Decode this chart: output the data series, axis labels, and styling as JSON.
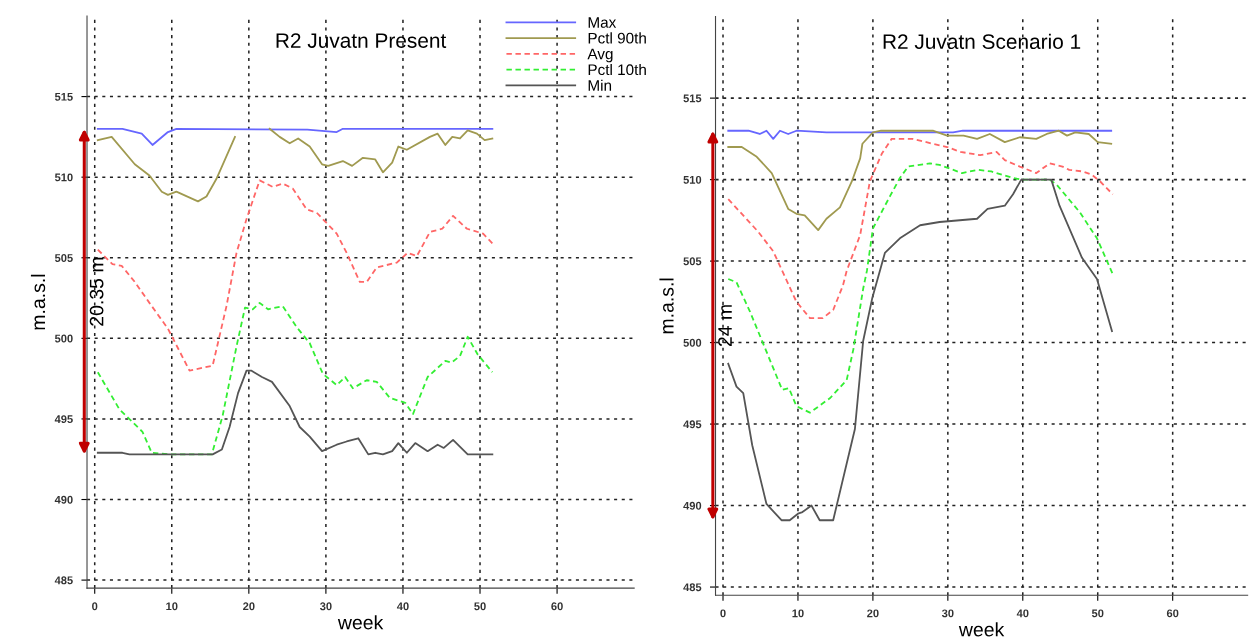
{
  "chart_data": [
    {
      "type": "line",
      "title": "R2 Juvatn Present",
      "xlabel": "week",
      "ylabel": "m.a.s.l",
      "xlim": [
        -1,
        70
      ],
      "ylim": [
        484.5,
        520
      ],
      "xticks": [
        0,
        10,
        20,
        30,
        40,
        50,
        60
      ],
      "yticks": [
        485,
        490,
        495,
        500,
        505,
        510,
        515
      ],
      "grid": true,
      "legend": "top right",
      "marker": "none",
      "annotations": [
        "20.35 m"
      ],
      "series": [
        {
          "name": "Max",
          "color": "#6666ff",
          "line_style": "solid",
          "x": [
            0.4,
            3.6,
            6.1,
            7.5,
            9.5,
            10.6,
            27.6,
            31.4,
            32.2,
            51.6
          ],
          "values": [
            513,
            513,
            512.7,
            512.0,
            512.8,
            513,
            512.95,
            512.8,
            513,
            513
          ]
        },
        {
          "name": "Pctl 90th",
          "color": "#a09a50",
          "line_style": "solid",
          "x": [
            0.4,
            2.2,
            5.2,
            7.1,
            8.7,
            9.5,
            10.6,
            13.4,
            14.5,
            15.8,
            18.2,
            18.5,
            22.7,
            24.0,
            25.3,
            26.4,
            27.9,
            29.5,
            30.3,
            32.2,
            33.4,
            34.8,
            36.4,
            37.4,
            38.6,
            39.4,
            40.5,
            43.5,
            44.5,
            45.5,
            46.4,
            47.4,
            48.4,
            49.6,
            50.6,
            51.6
          ],
          "values": [
            512.3,
            512.5,
            510.8,
            510.1,
            509.1,
            508.9,
            509.1,
            508.5,
            508.8,
            509.9,
            512.5,
            null,
            513,
            512.5,
            512.1,
            512.4,
            511.9,
            510.8,
            510.7,
            511.0,
            510.7,
            511.2,
            511.1,
            510.3,
            510.9,
            511.9,
            511.7,
            512.5,
            512.7,
            512.0,
            512.5,
            512.4,
            512.9,
            512.7,
            512.3,
            512.4
          ]
        },
        {
          "name": "Avg",
          "color": "#ff6666",
          "line_style": "dashed",
          "x": [
            0.4,
            2.3,
            3.5,
            5.2,
            7.1,
            9.5,
            12.3,
            15.3,
            17.1,
            18.4,
            19.7,
            21.4,
            23.1,
            24.4,
            25.7,
            27.5,
            28.8,
            31.4,
            32.7,
            34.4,
            35.3,
            36.6,
            39.2,
            40.6,
            41.8,
            43.5,
            45.1,
            46.5,
            48.3,
            50.4,
            51.6
          ],
          "values": [
            505.5,
            504.6,
            504.5,
            503.5,
            502.2,
            500.6,
            498.0,
            498.3,
            502.0,
            505.3,
            507.4,
            509.8,
            509.4,
            509.6,
            509.3,
            508.0,
            507.8,
            506.5,
            505.3,
            503.5,
            503.5,
            504.4,
            504.7,
            505.3,
            505.1,
            506.6,
            506.8,
            507.6,
            506.8,
            506.5,
            505.9
          ]
        },
        {
          "name": "Pctl 10th",
          "color": "#33ee33",
          "line_style": "dashed",
          "x": [
            0.4,
            3.2,
            6.2,
            7.4,
            10,
            15.2,
            16.6,
            18.4,
            19.5,
            20.5,
            21.4,
            22.5,
            24.4,
            26.2,
            27.9,
            29.6,
            31.4,
            32.5,
            33.5,
            35.3,
            36.6,
            38.3,
            40.3,
            41.3,
            43.2,
            45.5,
            46.3,
            47.4,
            48.4,
            49.7,
            51.6
          ],
          "values": [
            497.9,
            495.6,
            494.2,
            492.9,
            492.8,
            492.8,
            495.2,
            499.5,
            501.9,
            501.8,
            502.2,
            501.8,
            502.0,
            500.7,
            499.7,
            497.8,
            497.1,
            497.6,
            496.9,
            497.4,
            497.3,
            496.3,
            496.0,
            495.3,
            497.6,
            498.6,
            498.5,
            498.9,
            500.1,
            499.0,
            497.9
          ]
        },
        {
          "name": "Min",
          "color": "#555555",
          "line_style": "solid",
          "x": [
            0.4,
            3.6,
            4.5,
            15.3,
            16.5,
            17.5,
            18.6,
            19.7,
            20.3,
            21.7,
            23.0,
            25.3,
            26.6,
            27.9,
            29.5,
            31.4,
            32.7,
            34.2,
            35.5,
            36.4,
            37.4,
            38.6,
            39.4,
            40.5,
            41.6,
            43.2,
            44.5,
            45.3,
            46.5,
            48.4,
            51.6
          ],
          "values": [
            492.9,
            492.9,
            492.8,
            492.8,
            493.1,
            494.5,
            496.6,
            498.0,
            498.0,
            497.6,
            497.3,
            495.8,
            494.5,
            493.9,
            493.0,
            493.4,
            493.6,
            493.8,
            492.8,
            492.9,
            492.8,
            493.0,
            493.5,
            492.9,
            493.5,
            493.0,
            493.4,
            493.2,
            493.7,
            492.8,
            492.8
          ]
        }
      ]
    },
    {
      "type": "line",
      "title": "R2 Juvatn Scenario 1",
      "xlabel": "week",
      "ylabel": "m.a.s.l",
      "xlim": [
        -1,
        70
      ],
      "ylim": [
        484.5,
        520
      ],
      "xticks": [
        0,
        10,
        20,
        30,
        40,
        50,
        60
      ],
      "yticks": [
        485,
        490,
        495,
        500,
        505,
        510,
        515
      ],
      "grid": true,
      "marker": "none",
      "annotations": [
        "24 m"
      ],
      "series": [
        {
          "color": "#6666ff",
          "line_style": "solid",
          "x": [
            0.7,
            3.4,
            4.9,
            5.8,
            6.7,
            7.6,
            8.7,
            9.8,
            13.8,
            30.7,
            32.0,
            51.8
          ],
          "values": [
            513,
            513,
            512.8,
            513,
            512.5,
            513,
            512.8,
            513,
            512.9,
            512.9,
            513,
            513
          ]
        },
        {
          "color": "#a09a50",
          "line_style": "solid",
          "x": [
            0.7,
            2.5,
            4.5,
            6.5,
            8.7,
            9.8,
            10.9,
            12.7,
            13.8,
            15.6,
            17.2,
            18.3,
            18.6,
            20.0,
            21.1,
            28.0,
            29.9,
            32.1,
            33.9,
            35.6,
            37.6,
            39.6,
            41.8,
            43.2,
            44.8,
            45.9,
            47.0,
            48.8,
            50.0,
            51.8
          ],
          "values": [
            512.0,
            512.0,
            511.4,
            510.4,
            508.2,
            507.9,
            507.8,
            506.9,
            507.6,
            508.3,
            509.9,
            511.3,
            512.2,
            512.9,
            513,
            513,
            512.7,
            512.7,
            512.5,
            512.8,
            512.3,
            512.6,
            512.5,
            512.8,
            513,
            512.7,
            512.9,
            512.8,
            512.3,
            512.2
          ]
        },
        {
          "color": "#ff6666",
          "line_style": "dashed",
          "x": [
            0.7,
            4.7,
            6.7,
            9.8,
            11.6,
            13.3,
            14.7,
            16.0,
            16.5,
            18.3,
            19.6,
            21.2,
            22.5,
            25.3,
            28.0,
            29.9,
            31.7,
            34.3,
            36.5,
            37.6,
            39.6,
            41.8,
            43.6,
            45.3,
            46.2,
            48.0,
            49.2,
            50.3,
            52.0
          ],
          "values": [
            508.8,
            506.8,
            505.6,
            502.5,
            501.5,
            501.5,
            502.0,
            503.5,
            504.4,
            506.6,
            509.9,
            511.6,
            512.5,
            512.5,
            512.2,
            512.0,
            511.7,
            511.5,
            511.7,
            511.2,
            510.8,
            510.4,
            511.0,
            510.8,
            510.6,
            510.5,
            510.3,
            509.9,
            509.1
          ]
        },
        {
          "color": "#33ee33",
          "line_style": "dashed",
          "x": [
            0.7,
            1.8,
            3.6,
            5.3,
            7.9,
            8.8,
            9.8,
            11.6,
            14.3,
            16.5,
            17.4,
            18.7,
            19.2,
            20.0,
            22.3,
            23.6,
            24.7,
            27.6,
            28.9,
            31.9,
            34.0,
            35.8,
            38.7,
            39.8,
            43.6,
            44.5,
            47.6,
            49.9,
            52.0
          ],
          "values": [
            503.9,
            503.7,
            501.9,
            500.0,
            497.1,
            497.2,
            496.1,
            495.7,
            496.6,
            497.7,
            499.6,
            503.3,
            504.4,
            507.0,
            509.0,
            510.1,
            510.8,
            511.0,
            510.9,
            510.4,
            510.6,
            510.5,
            510.1,
            510.0,
            510.0,
            509.7,
            508.0,
            506.4,
            504.2
          ]
        },
        {
          "color": "#555555",
          "line_style": "solid",
          "x": [
            0.7,
            1.8,
            2.7,
            3.9,
            5.8,
            7.8,
            8.9,
            10.0,
            10.6,
            11.8,
            12.9,
            14.7,
            17.6,
            18.7,
            19.9,
            21.6,
            23.6,
            26.3,
            28.9,
            33.9,
            35.3,
            37.6,
            38.7,
            39.8,
            43.8,
            44.9,
            47.9,
            49.9,
            51.9
          ],
          "values": [
            498.7,
            497.3,
            496.9,
            493.7,
            490.1,
            489.1,
            489.1,
            489.5,
            489.6,
            490.0,
            489.1,
            489.1,
            494.7,
            500.1,
            502.7,
            505.5,
            506.4,
            507.2,
            507.4,
            507.6,
            508.2,
            508.4,
            509.1,
            510.0,
            510.0,
            508.4,
            505.2,
            503.9,
            500.7
          ]
        }
      ]
    }
  ]
}
